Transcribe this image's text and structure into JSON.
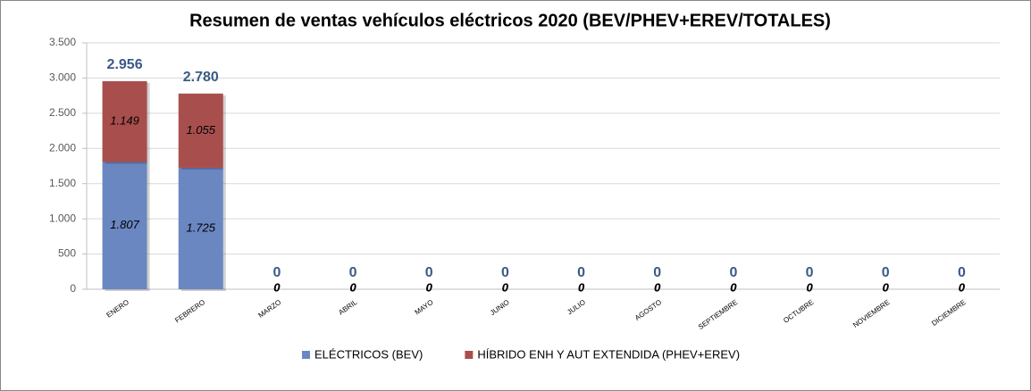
{
  "chart_data": {
    "type": "stacked_bar",
    "title": "Resumen de ventas vehículos eléctricos 2020 (BEV/PHEV+EREV/TOTALES)",
    "categories": [
      "ENERO",
      "FEBRERO",
      "MARZO",
      "ABRIL",
      "MAYO",
      "JUNIO",
      "JULIO",
      "AGOSTO",
      "SEPTIEMBRE",
      "OCTUBRE",
      "NOVIEMBRE",
      "DICIEMBRE"
    ],
    "series": [
      {
        "name": "ELÉCTRICOS (BEV)",
        "color": "#6a87c2",
        "values": [
          1807,
          1725,
          0,
          0,
          0,
          0,
          0,
          0,
          0,
          0,
          0,
          0
        ],
        "value_labels": [
          "1.807",
          "1.725",
          "0",
          "0",
          "0",
          "0",
          "0",
          "0",
          "0",
          "0",
          "0",
          "0"
        ]
      },
      {
        "name": "HÍBRIDO ENH Y AUT EXTENDIDA (PHEV+EREV)",
        "color": "#a84f4d",
        "values": [
          1149,
          1055,
          0,
          0,
          0,
          0,
          0,
          0,
          0,
          0,
          0,
          0
        ],
        "value_labels": [
          "1.149",
          "1.055",
          "0",
          "0",
          "0",
          "0",
          "0",
          "0",
          "0",
          "0",
          "0",
          "0"
        ]
      }
    ],
    "totals": {
      "values": [
        2956,
        2780,
        0,
        0,
        0,
        0,
        0,
        0,
        0,
        0,
        0,
        0
      ],
      "value_labels": [
        "2.956",
        "2.780",
        "0",
        "0",
        "0",
        "0",
        "0",
        "0",
        "0",
        "0",
        "0",
        "0"
      ]
    },
    "ylim": [
      0,
      3500
    ],
    "yticks": [
      0,
      500,
      {
        "value": 1000,
        "label": "1.000"
      },
      {
        "value": 1500,
        "label": "1.500"
      },
      {
        "value": 2000,
        "label": "2.000"
      },
      {
        "value": 2500,
        "label": "2.500"
      },
      {
        "value": 3000,
        "label": "3.000"
      },
      {
        "value": 3500,
        "label": "3.500"
      }
    ],
    "grid": true
  }
}
